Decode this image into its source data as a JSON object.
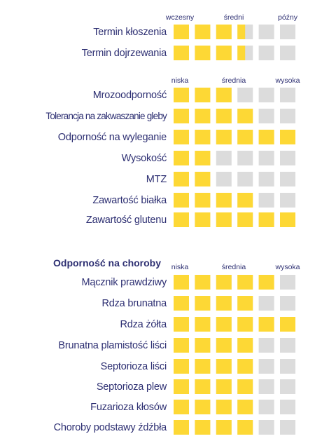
{
  "chart_data": {
    "type": "table",
    "segments": 6,
    "colors": {
      "filled": "#fdd835",
      "empty": "#dcdcdc",
      "text": "#2d2f72"
    },
    "groups": [
      {
        "scale_labels": [
          "wczesny",
          "średni",
          "późny"
        ],
        "rows": [
          {
            "label": "Termin kłoszenia",
            "value": 3.5
          },
          {
            "label": "Termin dojrzewania",
            "value": 3.5
          }
        ]
      },
      {
        "scale_labels": [
          "niska",
          "średnia",
          "wysoka"
        ],
        "rows": [
          {
            "label": "Mrozoodporność",
            "value": 3
          },
          {
            "label": "Tolerancja na zakwaszanie gleby",
            "value": 4
          },
          {
            "label": "Odporność na wyleganie",
            "value": 6
          },
          {
            "label": "Wysokość",
            "value": 2
          },
          {
            "label": "MTZ",
            "value": 2
          },
          {
            "label": "Zawartość białka",
            "value": 4
          },
          {
            "label": "Zawartość glutenu",
            "value": 6
          }
        ]
      },
      {
        "title": "Odporność na choroby",
        "scale_labels": [
          "niska",
          "średnia",
          "wysoka"
        ],
        "rows": [
          {
            "label": "Mącznik prawdziwy",
            "value": 5
          },
          {
            "label": "Rdza brunatna",
            "value": 4
          },
          {
            "label": "Rdza żółta",
            "value": 6
          },
          {
            "label": "Brunatna plamistość liści",
            "value": 4
          },
          {
            "label": "Septorioza liści",
            "value": 4
          },
          {
            "label": "Septorioza plew",
            "value": 4
          },
          {
            "label": "Fuzarioza kłosów",
            "value": 4
          },
          {
            "label": "Choroby podstawy źdźbła",
            "value": 4
          }
        ]
      }
    ]
  }
}
